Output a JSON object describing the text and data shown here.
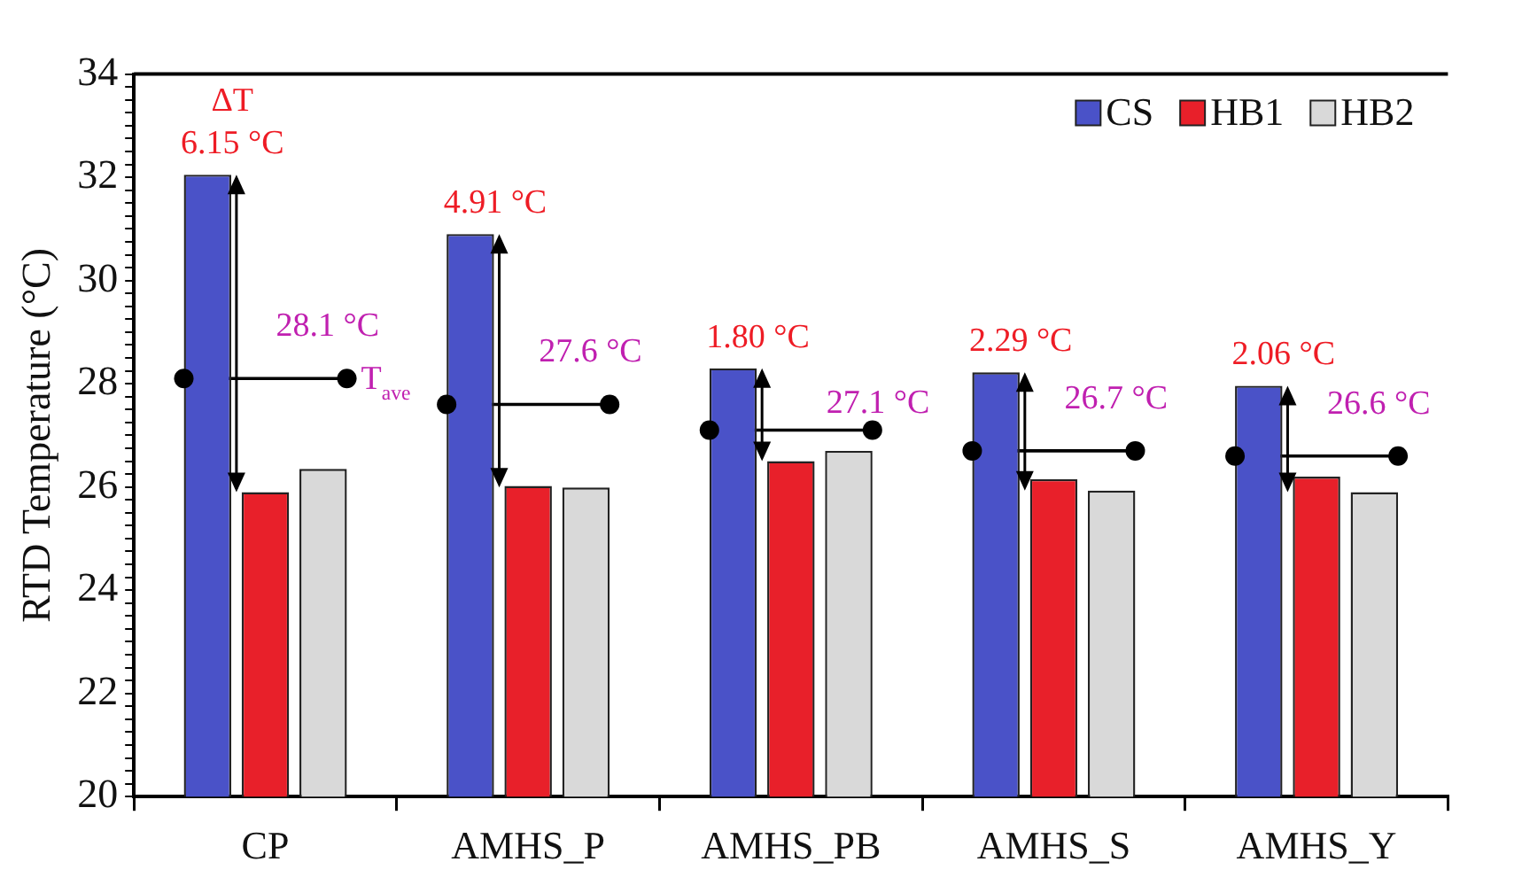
{
  "chart_data": {
    "type": "bar",
    "ylabel": "RTD Temperature (°C)",
    "categories": [
      "CP",
      "AMHS_P",
      "AMHS_PB",
      "AMHS_S",
      "AMHS_Y"
    ],
    "series": [
      {
        "name": "CS",
        "color": "#4a52c8",
        "values": [
          32.05,
          30.9,
          28.3,
          28.22,
          27.96
        ]
      },
      {
        "name": "HB1",
        "color": "#e8202a",
        "values": [
          25.9,
          26.02,
          26.5,
          26.15,
          26.2
        ]
      },
      {
        "name": "HB2",
        "color": "#d9d9d9",
        "values": [
          26.35,
          25.99,
          26.7,
          25.93,
          25.9
        ]
      },
      {
        "name": "T$_{ave}$",
        "type": "scatter",
        "color": "#000000",
        "values": [
          28.1,
          27.6,
          27.1,
          26.7,
          26.6
        ],
        "value_labels": [
          "28.1 °C",
          "27.6 °C",
          "27.1 °C",
          "26.7 °C",
          "26.6 °C"
        ]
      }
    ],
    "ylim": [
      20,
      34
    ],
    "yticks": [
      20,
      {
        "value": 20.25,
        "label": null
      },
      {
        "value": 20.5,
        "label": null
      },
      {
        "value": 20.75,
        "label": null
      },
      {
        "value": 21,
        "label": null
      },
      {
        "value": 21.25,
        "label": null
      },
      {
        "value": 21.5,
        "label": null
      },
      {
        "value": 21.75,
        "label": null
      },
      22,
      {
        "value": 22.25,
        "label": null
      },
      {
        "value": 22.5,
        "label": null
      },
      {
        "value": 22.75,
        "label": null
      },
      {
        "value": 23,
        "label": null
      },
      {
        "value": 23.25,
        "label": null
      },
      {
        "value": 23.5,
        "label": null
      },
      {
        "value": 23.75,
        "label": null
      },
      24,
      {
        "value": 24.25,
        "label": null
      },
      {
        "value": 24.5,
        "label": null
      },
      {
        "value": 24.75,
        "label": null
      },
      {
        "value": 25,
        "label": null
      },
      {
        "value": 25.25,
        "label": null
      },
      {
        "value": 25.5,
        "label": null
      },
      {
        "value": 25.75,
        "label": null
      },
      26,
      {
        "value": 26.25,
        "label": null
      },
      {
        "value": 26.5,
        "label": null
      },
      {
        "value": 26.75,
        "label": null
      },
      {
        "value": 27,
        "label": null
      },
      {
        "value": 27.25,
        "label": null
      },
      {
        "value": 27.5,
        "label": null
      },
      {
        "value": 27.75,
        "label": null
      },
      28,
      {
        "value": 28.25,
        "label": null
      },
      {
        "value": 28.5,
        "label": null
      },
      {
        "value": 28.75,
        "label": null
      },
      {
        "value": 29,
        "label": null
      },
      {
        "value": 29.25,
        "label": null
      },
      {
        "value": 29.5,
        "label": null
      },
      {
        "value": 29.75,
        "label": null
      },
      30,
      {
        "value": 30.25,
        "label": null
      },
      {
        "value": 30.5,
        "label": null
      },
      {
        "value": 30.75,
        "label": null
      },
      {
        "value": 31,
        "label": null
      },
      {
        "value": 31.25,
        "label": null
      },
      {
        "value": 31.5,
        "label": null
      },
      {
        "value": 31.75,
        "label": null
      },
      32,
      {
        "value": 32.25,
        "label": null
      },
      {
        "value": 32.5,
        "label": null
      },
      {
        "value": 32.75,
        "label": null
      },
      {
        "value": 33,
        "label": null
      },
      {
        "value": 33.25,
        "label": null
      },
      {
        "value": 33.5,
        "label": null
      },
      {
        "value": 33.75,
        "label": null
      },
      34
    ],
    "grid": false,
    "legend": "top right",
    "annotations": [
      "ΔT",
      "6.15 °C",
      "4.91 °C",
      "1.80 °C",
      "2.29 °C",
      "2.06 °C"
    ]
  }
}
